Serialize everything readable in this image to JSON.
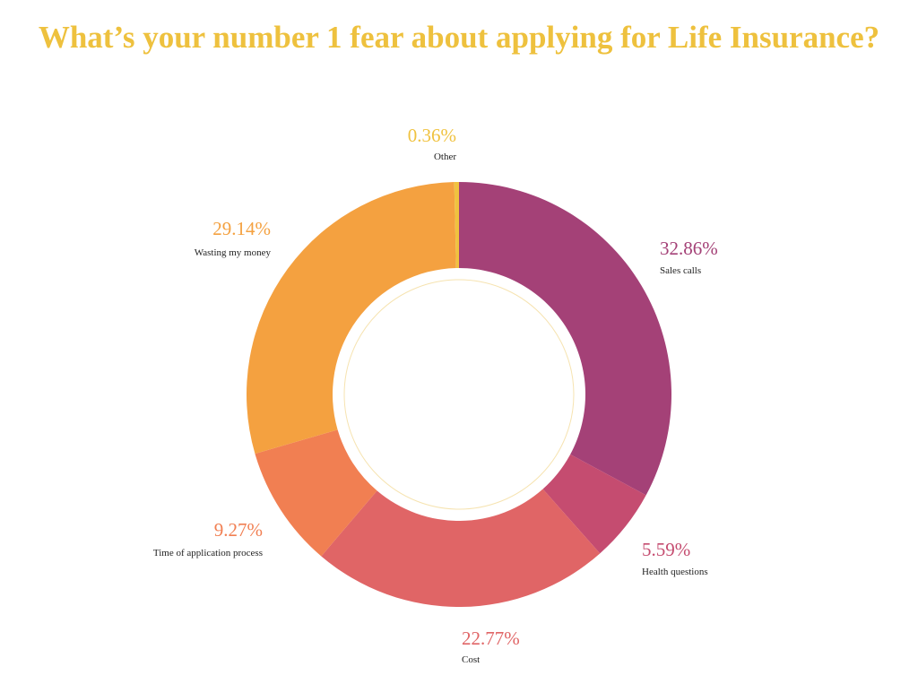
{
  "chart_data": {
    "type": "pie",
    "variant": "donut",
    "title": "What’s your number 1 fear about applying for Life Insurance?",
    "title_color": "#eec13e",
    "slices": [
      {
        "label": "Sales calls",
        "value": 32.86,
        "value_label": "32.86%",
        "color": "#a44177"
      },
      {
        "label": "Health questions",
        "value": 5.59,
        "value_label": "5.59%",
        "color": "#c54c70"
      },
      {
        "label": "Cost",
        "value": 22.77,
        "value_label": "22.77%",
        "color": "#e06566"
      },
      {
        "label": "Time of application process",
        "value": 9.27,
        "value_label": "9.27%",
        "color": "#f17f52"
      },
      {
        "label": "Wasting my money",
        "value": 29.14,
        "value_label": "29.14%",
        "color": "#f4a140"
      },
      {
        "label": "Other",
        "value": 0.36,
        "value_label": "0.36%",
        "color": "#f0c23f"
      }
    ]
  }
}
